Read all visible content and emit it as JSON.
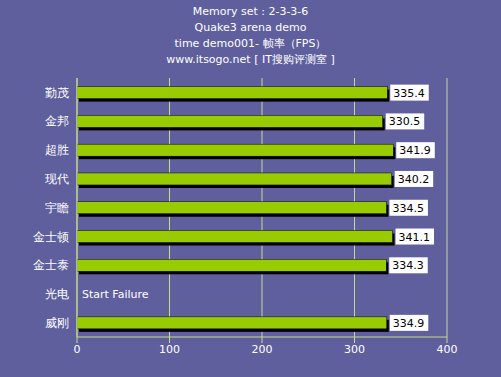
{
  "chart_data": {
    "type": "bar",
    "orientation": "horizontal",
    "title": [
      "Memory set : 2-3-3-6",
      "Quake3 arena demo",
      "time demo001- 帧率（FPS）",
      "www.itsogo.net [ IT搜购评测室 ]"
    ],
    "categories": [
      "勤茂",
      "金邦",
      "超胜",
      "现代",
      "宇瞻",
      "金士顿",
      "金士泰",
      "光电",
      "威刚"
    ],
    "values": [
      335.4,
      330.5,
      341.9,
      340.2,
      334.5,
      341.1,
      334.3,
      null,
      334.9
    ],
    "color": "#99cc00",
    "xlim": [
      0,
      400
    ],
    "xticks": [
      0,
      100,
      200,
      300,
      400
    ],
    "grid": true,
    "data_labels": true,
    "annotations": [
      {
        "category": "光电",
        "text": "Start Failure"
      }
    ]
  }
}
